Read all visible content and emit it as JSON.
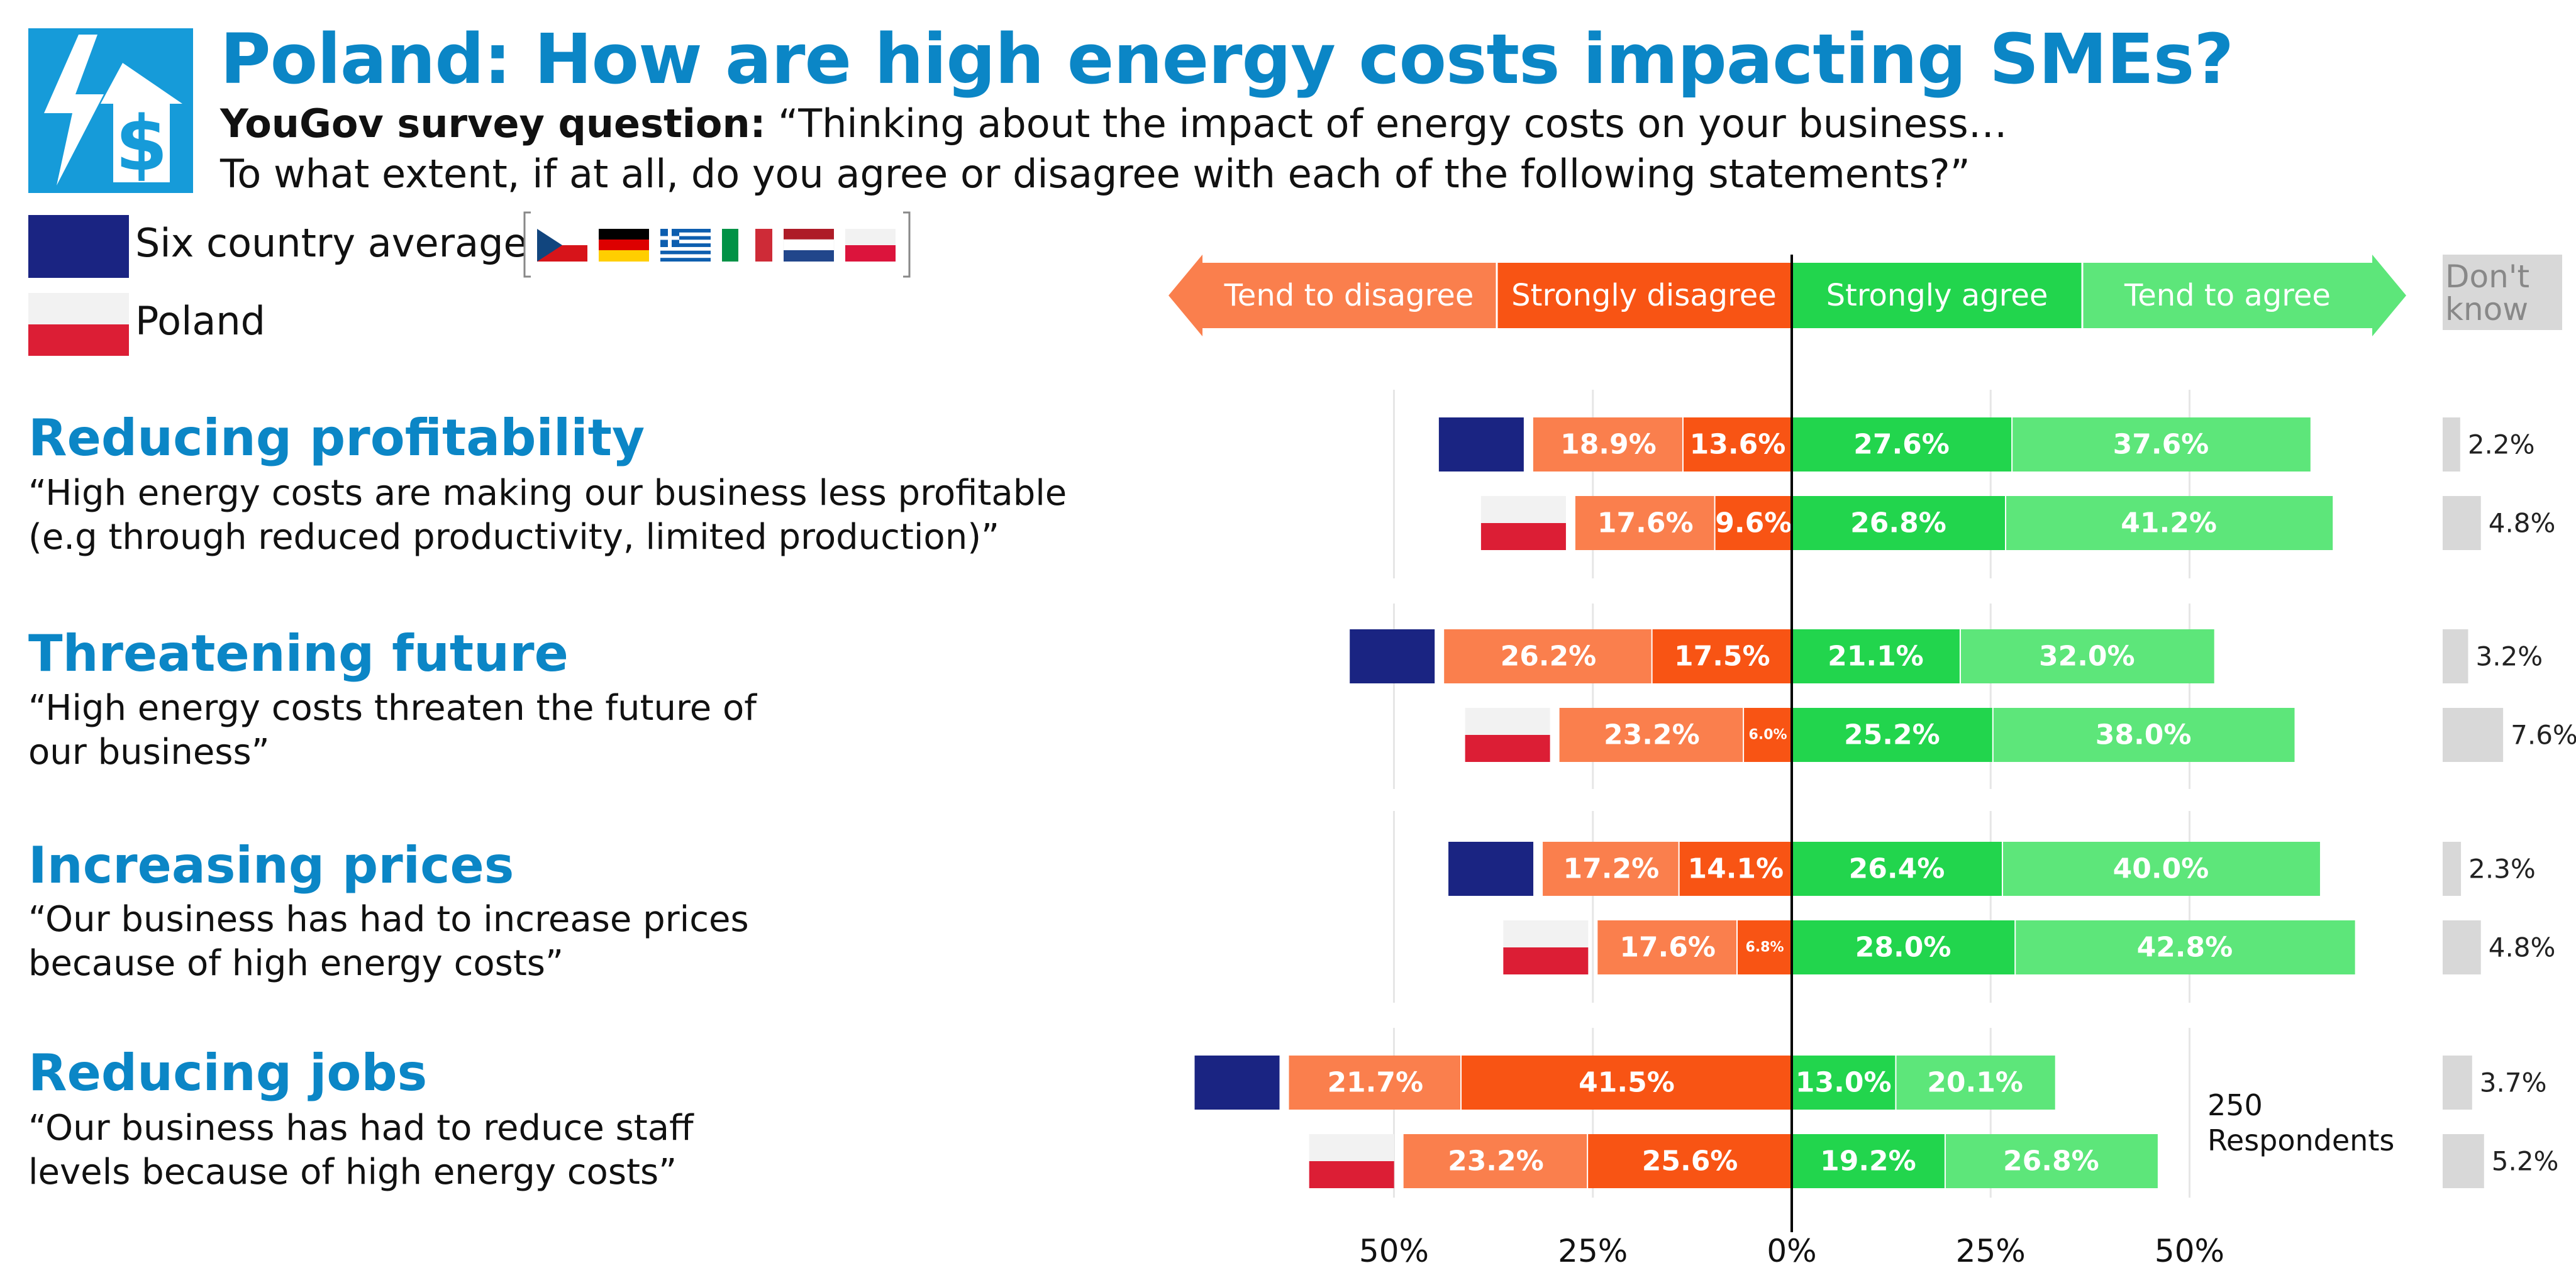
{
  "header": {
    "title": "Poland: How are high energy costs impacting SMEs?",
    "subtitle_bold": "YouGov survey question:",
    "subtitle_line1": " “Thinking about the impact of energy costs on your business…",
    "subtitle_line2": "To what extent, if at all, do you agree or disagree with each of the following statements?”"
  },
  "legend": {
    "average_label": "Six country average",
    "poland_label": "Poland",
    "average_color": "#1a2482"
  },
  "questions": [
    {
      "heading": "Reducing profitability",
      "description": "“High energy costs are making our business less profitable (e.g through reduced productivity, limited production)”"
    },
    {
      "heading": "Threatening future",
      "description": "“High energy costs threaten the future of our business”"
    },
    {
      "heading": "Increasing prices",
      "description": "“Our business has had to increase prices because of high energy costs”"
    },
    {
      "heading": "Reducing jobs",
      "description": "“Our business has had to reduce staff levels because of high energy costs”"
    }
  ],
  "respondents_note": "250 Respondents",
  "chart_data": {
    "type": "bar",
    "orientation": "horizontal-diverging",
    "header_labels": {
      "tend_disagree": "Tend to disagree",
      "strongly_disagree": "Strongly disagree",
      "strongly_agree": "Strongly agree",
      "tend_agree": "Tend to agree",
      "dont_know": "Don't know"
    },
    "colors": {
      "tend_disagree": "#fa7f4d",
      "strongly_disagree": "#f85414",
      "strongly_agree": "#22d54d",
      "tend_agree": "#5de67a",
      "dont_know": "#d8d8d8",
      "six_country": "#1a2482",
      "poland_white": "#f2f2f2",
      "poland_red": "#dc1e35"
    },
    "x_ticks": [
      "50%",
      "25%",
      "0%",
      "25%",
      "50%"
    ],
    "xlim": [
      -50,
      50
    ],
    "rows": [
      {
        "question": "Reducing profitability",
        "group": "Six country average",
        "tend_disagree": 18.9,
        "strongly_disagree": 13.6,
        "strongly_agree": 27.6,
        "tend_agree": 37.6,
        "dont_know": 2.2,
        "labels": {
          "tend_disagree": "18.9%",
          "strongly_disagree": "13.6%",
          "strongly_agree": "27.6%",
          "tend_agree": "37.6%",
          "dont_know": "2.2%"
        }
      },
      {
        "question": "Reducing profitability",
        "group": "Poland",
        "tend_disagree": 17.6,
        "strongly_disagree": 9.6,
        "strongly_agree": 26.8,
        "tend_agree": 41.2,
        "dont_know": 4.8,
        "labels": {
          "tend_disagree": "17.6%",
          "strongly_disagree": "9.6%",
          "strongly_agree": "26.8%",
          "tend_agree": "41.2%",
          "dont_know": "4.8%"
        }
      },
      {
        "question": "Threatening future",
        "group": "Six country average",
        "tend_disagree": 26.2,
        "strongly_disagree": 17.5,
        "strongly_agree": 21.1,
        "tend_agree": 32.0,
        "dont_know": 3.2,
        "labels": {
          "tend_disagree": "26.2%",
          "strongly_disagree": "17.5%",
          "strongly_agree": "21.1%",
          "tend_agree": "32.0%",
          "dont_know": "3.2%"
        }
      },
      {
        "question": "Threatening future",
        "group": "Poland",
        "tend_disagree": 23.2,
        "strongly_disagree": 6.0,
        "strongly_agree": 25.2,
        "tend_agree": 38.0,
        "dont_know": 7.6,
        "labels": {
          "tend_disagree": "23.2%",
          "strongly_disagree": "6.0%",
          "strongly_agree": "25.2%",
          "tend_agree": "38.0%",
          "dont_know": "7.6%"
        }
      },
      {
        "question": "Increasing prices",
        "group": "Six country average",
        "tend_disagree": 17.2,
        "strongly_disagree": 14.1,
        "strongly_agree": 26.4,
        "tend_agree": 40.0,
        "dont_know": 2.3,
        "labels": {
          "tend_disagree": "17.2%",
          "strongly_disagree": "14.1%",
          "strongly_agree": "26.4%",
          "tend_agree": "40.0%",
          "dont_know": "2.3%"
        }
      },
      {
        "question": "Increasing prices",
        "group": "Poland",
        "tend_disagree": 17.6,
        "strongly_disagree": 6.8,
        "strongly_agree": 28.0,
        "tend_agree": 42.8,
        "dont_know": 4.8,
        "labels": {
          "tend_disagree": "17.6%",
          "strongly_disagree": "6.8%",
          "strongly_agree": "28.0%",
          "tend_agree": "42.8%",
          "dont_know": "4.8%"
        }
      },
      {
        "question": "Reducing jobs",
        "group": "Six country average",
        "tend_disagree": 21.7,
        "strongly_disagree": 41.5,
        "strongly_agree": 13.0,
        "tend_agree": 20.1,
        "dont_know": 3.7,
        "labels": {
          "tend_disagree": "21.7%",
          "strongly_disagree": "41.5%",
          "strongly_agree": "13.0%",
          "tend_agree": "20.1%",
          "dont_know": "3.7%"
        }
      },
      {
        "question": "Reducing jobs",
        "group": "Poland",
        "tend_disagree": 23.2,
        "strongly_disagree": 25.6,
        "strongly_agree": 19.2,
        "tend_agree": 26.8,
        "dont_know": 5.2,
        "labels": {
          "tend_disagree": "23.2%",
          "strongly_disagree": "25.6%",
          "strongly_agree": "19.2%",
          "tend_agree": "26.8%",
          "dont_know": "5.2%"
        }
      }
    ]
  }
}
